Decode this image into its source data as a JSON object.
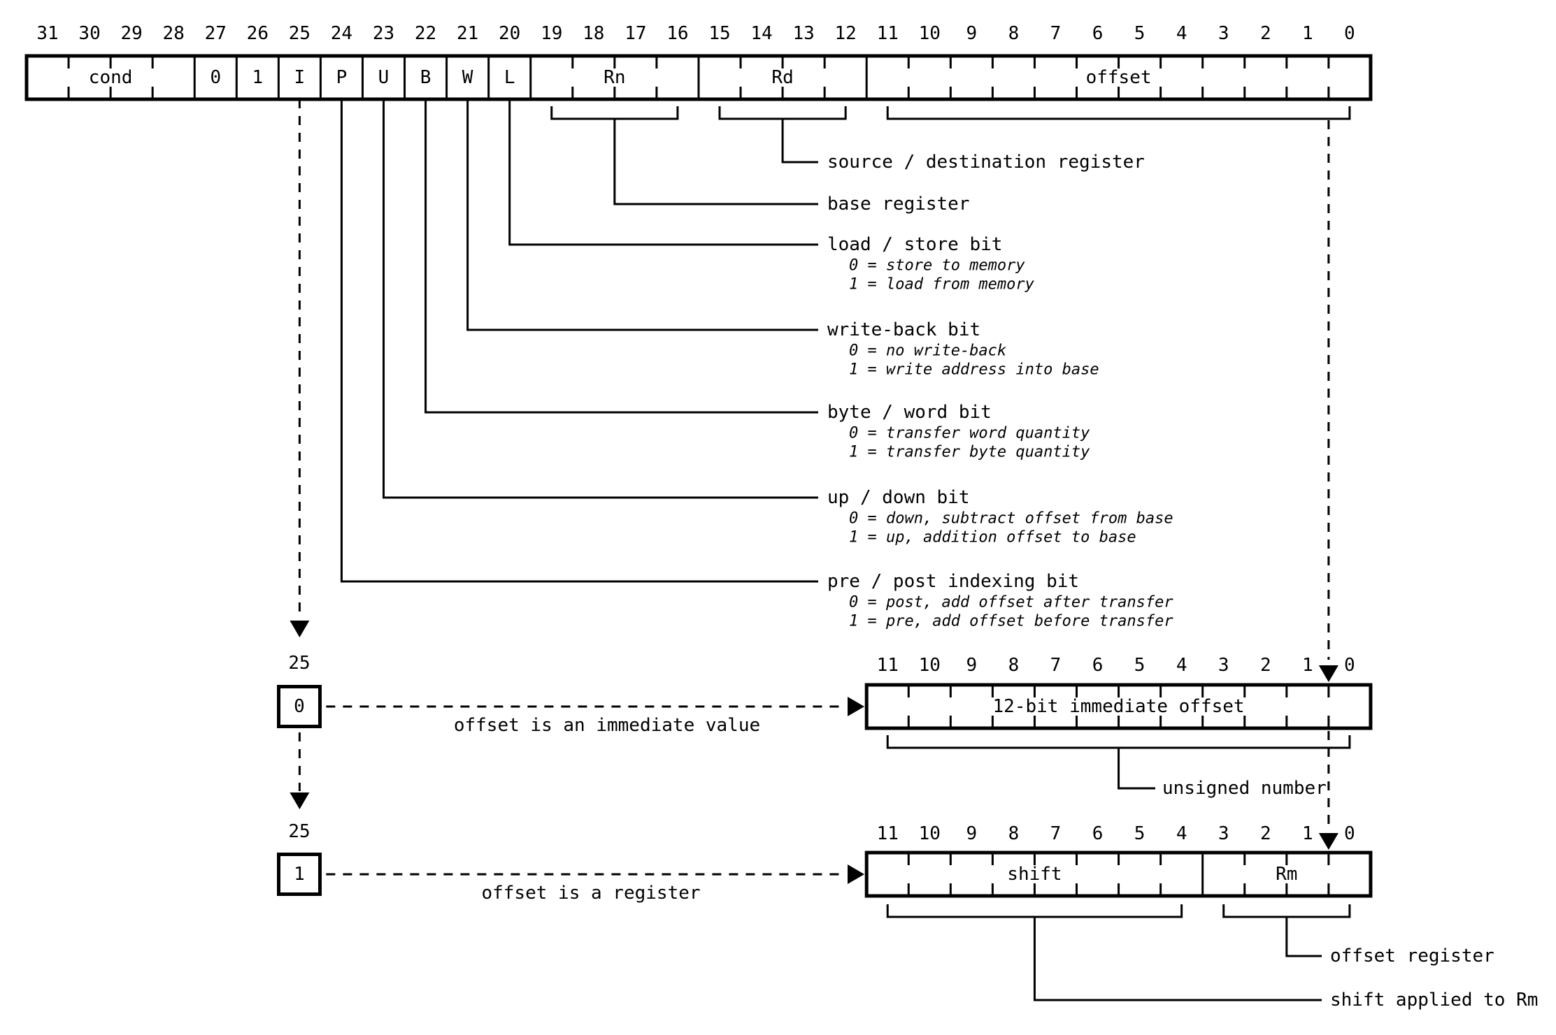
{
  "colors": {
    "ink": "#000000",
    "paper": "#ffffff"
  },
  "instruction_register": {
    "bit_numbers": [
      "31",
      "30",
      "29",
      "28",
      "27",
      "26",
      "25",
      "24",
      "23",
      "22",
      "21",
      "20",
      "19",
      "18",
      "17",
      "16",
      "15",
      "14",
      "13",
      "12",
      "11",
      "10",
      "9",
      "8",
      "7",
      "6",
      "5",
      "4",
      "3",
      "2",
      "1",
      "0"
    ],
    "fields": [
      {
        "name": "cond",
        "label": "cond",
        "bits": 4
      },
      {
        "name": "const-0",
        "label": "0",
        "bits": 1
      },
      {
        "name": "const-1",
        "label": "1",
        "bits": 1
      },
      {
        "name": "I",
        "label": "I",
        "bits": 1
      },
      {
        "name": "P",
        "label": "P",
        "bits": 1
      },
      {
        "name": "U",
        "label": "U",
        "bits": 1
      },
      {
        "name": "B",
        "label": "B",
        "bits": 1
      },
      {
        "name": "W",
        "label": "W",
        "bits": 1
      },
      {
        "name": "L",
        "label": "L",
        "bits": 1
      },
      {
        "name": "Rn",
        "label": "Rn",
        "bits": 4
      },
      {
        "name": "Rd",
        "label": "Rd",
        "bits": 4
      },
      {
        "name": "offset",
        "label": "offset",
        "bits": 12
      }
    ]
  },
  "callouts": [
    {
      "label": "source / destination register",
      "notes": []
    },
    {
      "label": "base register",
      "notes": []
    },
    {
      "label": "load / store bit",
      "notes": [
        "0 = store to memory",
        "1 = load from memory"
      ]
    },
    {
      "label": "write-back bit",
      "notes": [
        "0 = no write-back",
        "1 = write address into base"
      ]
    },
    {
      "label": "byte / word bit",
      "notes": [
        "0 = transfer word quantity",
        "1 = transfer byte quantity"
      ]
    },
    {
      "label": "up / down bit",
      "notes": [
        "0 = down, subtract offset from base",
        "1 = up, addition offset to base"
      ]
    },
    {
      "label": "pre / post indexing bit",
      "notes": [
        "0 = post, add offset after transfer",
        "1 = pre, add offset before transfer"
      ]
    }
  ],
  "immediate_variant": {
    "bit_number": "25",
    "bit_value": "0",
    "arrow_label": "offset is an immediate value",
    "register": {
      "bit_numbers": [
        "11",
        "10",
        "9",
        "8",
        "7",
        "6",
        "5",
        "4",
        "3",
        "2",
        "1",
        "0"
      ],
      "fields": [
        {
          "name": "immediate-offset",
          "label": "12-bit immediate offset",
          "bits": 12
        }
      ]
    },
    "bracket_label": "unsigned number"
  },
  "register_variant": {
    "bit_number": "25",
    "bit_value": "1",
    "arrow_label": "offset is a register",
    "register": {
      "bit_numbers": [
        "11",
        "10",
        "9",
        "8",
        "7",
        "6",
        "5",
        "4",
        "3",
        "2",
        "1",
        "0"
      ],
      "fields": [
        {
          "name": "shift",
          "label": "shift",
          "bits": 8
        },
        {
          "name": "Rm",
          "label": "Rm",
          "bits": 4
        }
      ]
    },
    "rm_bracket_label": "offset register",
    "shift_bracket_label": "shift applied to Rm"
  }
}
